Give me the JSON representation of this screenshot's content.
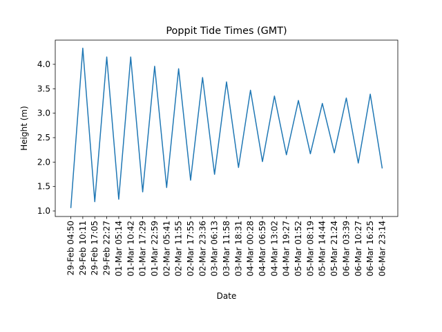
{
  "chart_data": {
    "type": "line",
    "title": "Poppit Tide Times (GMT)",
    "xlabel": "Date",
    "ylabel": "Height (m)",
    "categories": [
      "29-Feb 04:50",
      "29-Feb 10:11",
      "29-Feb 17:05",
      "29-Feb 22:27",
      "01-Mar 05:14",
      "01-Mar 10:42",
      "01-Mar 17:29",
      "01-Mar 22:59",
      "02-Mar 05:41",
      "02-Mar 11:55",
      "02-Mar 17:55",
      "02-Mar 23:36",
      "03-Mar 06:13",
      "03-Mar 11:58",
      "03-Mar 18:31",
      "04-Mar 00:28",
      "04-Mar 06:59",
      "04-Mar 13:02",
      "04-Mar 19:27",
      "05-Mar 01:52",
      "05-Mar 08:19",
      "05-Mar 14:44",
      "05-Mar 21:24",
      "06-Mar 03:39",
      "06-Mar 10:27",
      "06-Mar 16:25",
      "06-Mar 23:14"
    ],
    "values": [
      1.06,
      4.33,
      1.19,
      4.15,
      1.24,
      4.15,
      1.39,
      3.96,
      1.48,
      3.91,
      1.63,
      3.73,
      1.75,
      3.64,
      1.89,
      3.47,
      2.01,
      3.35,
      2.15,
      3.26,
      2.17,
      3.2,
      2.19,
      3.31,
      1.98,
      3.39,
      1.87
    ],
    "color": "#1f77b4",
    "ylim": [
      0.887,
      4.495
    ],
    "yticks": [
      {
        "value": 1.0,
        "label": "1.0"
      },
      {
        "value": 1.5,
        "label": "1.5"
      },
      {
        "value": 2.0,
        "label": "2.0"
      },
      {
        "value": 2.5,
        "label": "2.5"
      },
      {
        "value": 3.0,
        "label": "3.0"
      },
      {
        "value": 3.5,
        "label": "3.5"
      },
      {
        "value": 4.0,
        "label": "4.0"
      }
    ],
    "grid": false
  }
}
